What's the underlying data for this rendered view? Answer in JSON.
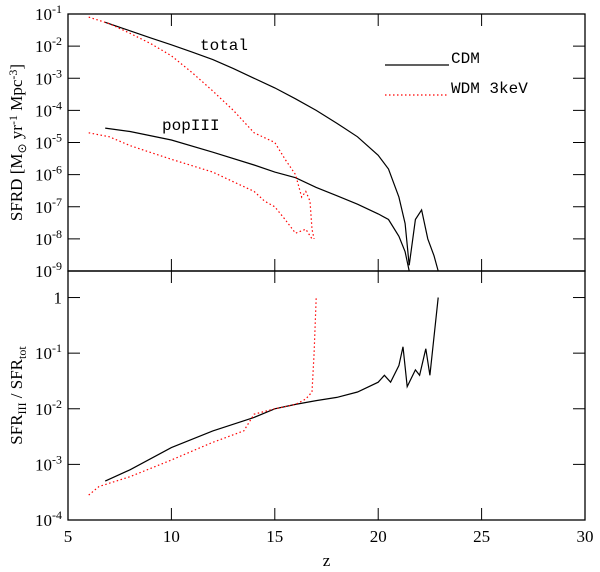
{
  "chart_data": [
    {
      "type": "line",
      "yscale": "log",
      "legend": "upper right",
      "ylabel": [
        {
          "text": "SFRD [M"
        },
        {
          "text": "⊙",
          "sub": true
        },
        {
          "text": " yr"
        },
        {
          "text": "-1",
          "sup": true
        },
        {
          "text": " Mpc"
        },
        {
          "text": "-3",
          "sup": true
        },
        {
          "text": "]"
        }
      ],
      "xlim": [
        5,
        30
      ],
      "xticks": [
        5,
        10,
        15,
        20,
        25,
        30
      ],
      "ylim": [
        1e-09,
        0.1
      ],
      "yticks": [
        {
          "value": 1e-09,
          "label": "10",
          "exp": "-9"
        },
        {
          "value": 1e-08,
          "label": "10",
          "exp": "-8"
        },
        {
          "value": 1e-07,
          "label": "10",
          "exp": "-7"
        },
        {
          "value": 1e-06,
          "label": "10",
          "exp": "-6"
        },
        {
          "value": 1e-05,
          "label": "10",
          "exp": "-5"
        },
        {
          "value": 0.0001,
          "label": "10",
          "exp": "-4"
        },
        {
          "value": 0.001,
          "label": "10",
          "exp": "-3"
        },
        {
          "value": 0.01,
          "label": "10",
          "exp": "-2"
        },
        {
          "value": 0.1,
          "label": "10",
          "exp": "-1"
        }
      ],
      "annotations": [
        {
          "text": "total",
          "color": "#e020e0"
        },
        {
          "text": "popIII",
          "color": "#e020e0"
        }
      ],
      "series": [
        {
          "name": "CDM",
          "color": "#000000",
          "style": "solid",
          "total": {
            "x": [
              6.8,
              8,
              9,
              10,
              11,
              12,
              13,
              14,
              15,
              16,
              17,
              18,
              19,
              20,
              20.5,
              21,
              21.3,
              21.5,
              21.8,
              22.1,
              22.4,
              22.7,
              22.9
            ],
            "values": [
              0.055,
              0.03,
              0.018,
              0.011,
              0.0065,
              0.0038,
              0.002,
              0.001,
              0.0005,
              0.00023,
              0.0001,
              4e-05,
              1.5e-05,
              4e-06,
              1.5e-06,
              2e-07,
              3e-08,
              1.5e-09,
              4e-08,
              8e-08,
              1e-08,
              3e-09,
              1e-09
            ]
          },
          "popIII": {
            "x": [
              6.8,
              8,
              10,
              12,
              14,
              15,
              16,
              17,
              18,
              19,
              20,
              20.5,
              21,
              21.3,
              21.5
            ],
            "values": [
              2.8e-05,
              2.2e-05,
              1.2e-05,
              5e-06,
              2e-06,
              1.2e-06,
              8e-07,
              4e-07,
              2.2e-07,
              1.2e-07,
              6e-08,
              4e-08,
              1.2e-08,
              4e-09,
              1e-09
            ]
          }
        },
        {
          "name": "WDM 3keV",
          "color": "#ff0000",
          "style": "dotted",
          "total": {
            "x": [
              6,
              7,
              8,
              9,
              10,
              11,
              12,
              13,
              14,
              15,
              15.5,
              16,
              16.3,
              16.5,
              16.7,
              16.8,
              16.9
            ],
            "values": [
              0.08,
              0.05,
              0.025,
              0.012,
              0.005,
              0.0015,
              0.0004,
              0.0001,
              2e-05,
              1e-05,
              3e-06,
              1e-06,
              2e-07,
              3e-07,
              1.5e-07,
              2e-08,
              1e-08
            ]
          },
          "popIII": {
            "x": [
              6,
              7,
              8,
              10,
              12,
              13,
              14,
              14.5,
              15,
              15.5,
              16,
              16.5,
              16.8
            ],
            "values": [
              2e-05,
              1.5e-05,
              8e-06,
              3e-06,
              1.2e-06,
              6e-07,
              3e-07,
              1.5e-07,
              1e-07,
              4e-08,
              1.5e-08,
              2e-08,
              1e-08
            ]
          }
        }
      ]
    },
    {
      "type": "line",
      "yscale": "log",
      "ylabel": [
        {
          "text": "SFR"
        },
        {
          "text": "III",
          "sub": true
        },
        {
          "text": " / SFR"
        },
        {
          "text": "tot",
          "sub": true
        }
      ],
      "xlabel": "z",
      "xlim": [
        5,
        30
      ],
      "xticks": [
        5,
        10,
        15,
        20,
        25,
        30
      ],
      "ylim": [
        0.0001,
        3
      ],
      "yticks": [
        {
          "value": 0.0001,
          "label": "10",
          "exp": "-4"
        },
        {
          "value": 0.001,
          "label": "10",
          "exp": "-3"
        },
        {
          "value": 0.01,
          "label": "10",
          "exp": "-2"
        },
        {
          "value": 0.1,
          "label": "10",
          "exp": "-1"
        },
        1
      ],
      "series": [
        {
          "color": "#000000",
          "style": "solid",
          "x": [
            6.8,
            8,
            10,
            12,
            14,
            15,
            16,
            17,
            18,
            19,
            20,
            20.3,
            20.6,
            21,
            21.2,
            21.4,
            21.8,
            22,
            22.3,
            22.5,
            22.9
          ],
          "values": [
            0.0005,
            0.0008,
            0.002,
            0.004,
            0.007,
            0.01,
            0.012,
            0.014,
            0.016,
            0.02,
            0.03,
            0.04,
            0.03,
            0.06,
            0.13,
            0.025,
            0.05,
            0.04,
            0.12,
            0.04,
            1
          ]
        },
        {
          "color": "#ff0000",
          "style": "dotted",
          "x": [
            6,
            6.5,
            8,
            10,
            12,
            13.5,
            14,
            15,
            16,
            16.5,
            16.8,
            16.9,
            17
          ],
          "values": [
            0.00028,
            0.0004,
            0.0006,
            0.0012,
            0.0025,
            0.004,
            0.008,
            0.01,
            0.012,
            0.015,
            0.02,
            0.1,
            1
          ]
        }
      ]
    }
  ]
}
